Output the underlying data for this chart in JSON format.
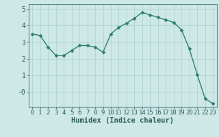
{
  "x": [
    0,
    1,
    2,
    3,
    4,
    5,
    6,
    7,
    8,
    9,
    10,
    11,
    12,
    13,
    14,
    15,
    16,
    17,
    18,
    19,
    20,
    21,
    22,
    23
  ],
  "y": [
    3.5,
    3.4,
    2.7,
    2.2,
    2.2,
    2.5,
    2.8,
    2.8,
    2.7,
    2.4,
    3.5,
    3.9,
    4.15,
    4.45,
    4.8,
    4.65,
    4.5,
    4.35,
    4.2,
    3.75,
    2.6,
    1.05,
    -0.4,
    -0.7
  ],
  "line_color": "#2e7d6e",
  "marker": "D",
  "marker_size": 2.5,
  "bg_color": "#cde8e7",
  "grid_color": "#afd4d2",
  "xlabel": "Humidex (Indice chaleur)",
  "xlabel_color": "#2e5d5a",
  "tick_color": "#2e5d5a",
  "axis_color": "#5a8a87",
  "ylim": [
    -0.9,
    5.3
  ],
  "xlim": [
    -0.5,
    23.5
  ],
  "ytick_vals": [
    0,
    1,
    2,
    3,
    4,
    5
  ],
  "ytick_labels": [
    "-0",
    "1",
    "2",
    "3",
    "4",
    "5"
  ],
  "xticks": [
    0,
    1,
    2,
    3,
    4,
    5,
    6,
    7,
    8,
    9,
    10,
    11,
    12,
    13,
    14,
    15,
    16,
    17,
    18,
    19,
    20,
    21,
    22,
    23
  ],
  "line_width": 1.0,
  "font_size": 6.5
}
